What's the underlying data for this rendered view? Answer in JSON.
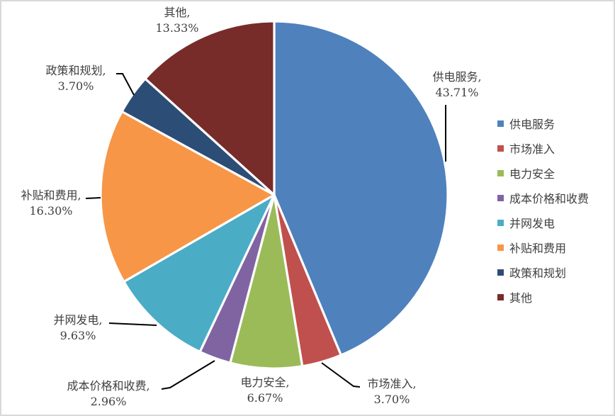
{
  "chart_data": {
    "type": "pie",
    "title": "",
    "legend_position": "right",
    "grid": false,
    "slices": [
      {
        "name": "供电服务",
        "value": 43.71,
        "label_line1": "供电服务,",
        "pct_text": "43.71%",
        "color": "#4F81BD"
      },
      {
        "name": "市场准入",
        "value": 3.7,
        "label_line1": "市场准入,",
        "pct_text": "3.70%",
        "color": "#C0504D"
      },
      {
        "name": "电力安全",
        "value": 6.67,
        "label_line1": "电力安全,",
        "pct_text": "6.67%",
        "color": "#9BBB59"
      },
      {
        "name": "成本价格和收费",
        "value": 2.96,
        "label_line1": "成本价格和收费,",
        "pct_text": "2.96%",
        "color": "#8064A2"
      },
      {
        "name": "并网发电",
        "value": 9.63,
        "label_line1": "并网发电,",
        "pct_text": "9.63%",
        "color": "#4BACC6"
      },
      {
        "name": "补贴和费用",
        "value": 16.3,
        "label_line1": "补贴和费用,",
        "pct_text": "16.30%",
        "color": "#F79646"
      },
      {
        "name": "政策和规划",
        "value": 3.7,
        "label_line1": "政策和规划,",
        "pct_text": "3.70%",
        "color": "#2C4D75"
      },
      {
        "name": "其他",
        "value": 13.33,
        "label_line1": "其他,",
        "pct_text": "13.33%",
        "color": "#772C2A"
      }
    ],
    "legend": [
      "供电服务",
      "市场准入",
      "电力安全",
      "成本价格和收费",
      "并网发电",
      "补贴和费用",
      "政策和规划",
      "其他"
    ]
  },
  "styles": {
    "background": "#FFFFFF",
    "border_color": "#D9D9D9",
    "label_color": "#3F3F3F",
    "leader_line_color": "#000000",
    "slice_stroke_color": "#FFFFFF"
  }
}
